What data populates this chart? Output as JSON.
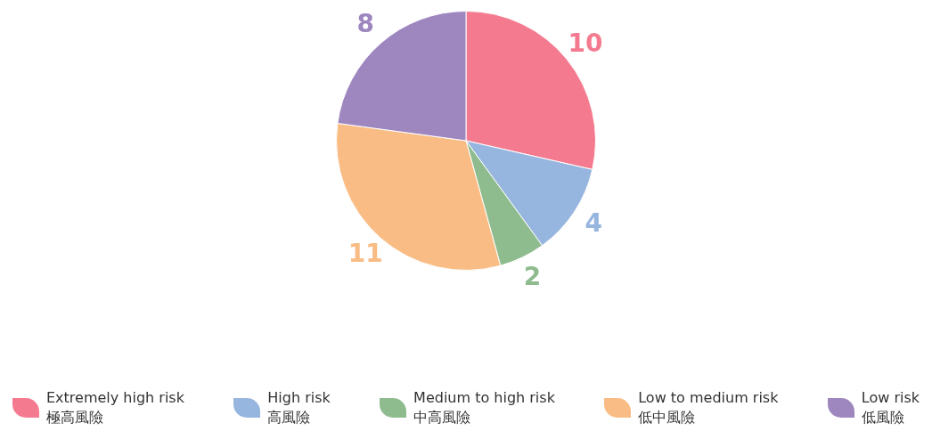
{
  "chart_data": {
    "type": "pie",
    "categories": [
      "Extremely high risk\n極高風險",
      "High risk\n高風險",
      "Medium to high risk\n中高風險",
      "Low to medium risk\n低中風險",
      "Low risk\n低風險"
    ],
    "values": [
      10,
      4,
      2,
      11,
      8
    ],
    "colors": [
      "#f47b8f",
      "#96b5df",
      "#8fbc8f",
      "#f9bc84",
      "#9e86bf"
    ],
    "data_labels": true,
    "legend": "bottom"
  }
}
